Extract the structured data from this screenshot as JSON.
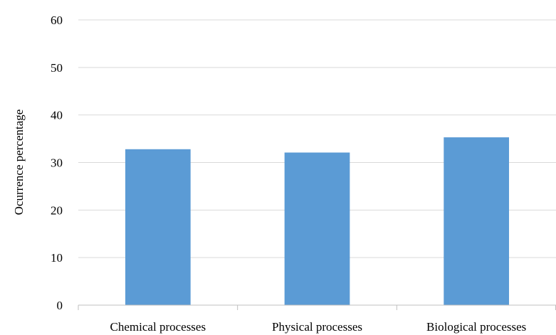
{
  "chart_data": {
    "type": "bar",
    "title": "",
    "xlabel": "",
    "ylabel": "Ocurrence percentage",
    "categories": [
      "Chemical processes",
      "Physical processes",
      "Biological processes"
    ],
    "values": [
      32.8,
      32.1,
      35.3
    ],
    "ylim": [
      0,
      60
    ],
    "yticks": [
      0,
      10,
      20,
      30,
      40,
      50,
      60
    ],
    "grid": "horizontal",
    "legend": "none",
    "bar_color": "#5b9bd5",
    "grid_color": "#d9d9d9",
    "axis_color": "#bfbfbf"
  }
}
